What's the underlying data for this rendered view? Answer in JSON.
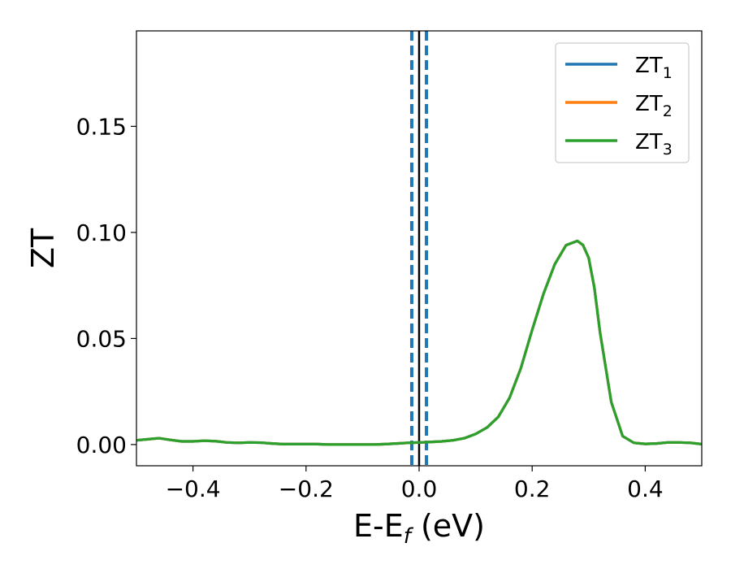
{
  "chart_data": {
    "type": "line",
    "xlabel": "E-E",
    "xlabel_sub": "f",
    "xlabel_unit": " (eV)",
    "ylabel": "ZT",
    "xlim": [
      -0.5,
      0.5
    ],
    "ylim": [
      -0.01,
      0.195
    ],
    "xticks": [
      -0.4,
      -0.2,
      0.0,
      0.2,
      0.4
    ],
    "xtick_labels": [
      "−0.4",
      "−0.2",
      "0.0",
      "0.2",
      "0.4"
    ],
    "yticks": [
      0.0,
      0.05,
      0.1,
      0.15
    ],
    "ytick_labels": [
      "0.00",
      "0.05",
      "0.10",
      "0.15"
    ],
    "grid": false,
    "legend_placement": "top-right",
    "vertical_lines": [
      {
        "x": 0.0,
        "color": "#000000",
        "style": "solid"
      },
      {
        "x": -0.013,
        "color": "#1f77b4",
        "style": "dashed"
      },
      {
        "x": 0.013,
        "color": "#1f77b4",
        "style": "dashed"
      }
    ],
    "x": [
      -0.5,
      -0.48,
      -0.46,
      -0.44,
      -0.42,
      -0.4,
      -0.38,
      -0.36,
      -0.34,
      -0.32,
      -0.3,
      -0.28,
      -0.26,
      -0.24,
      -0.22,
      -0.2,
      -0.18,
      -0.16,
      -0.14,
      -0.12,
      -0.1,
      -0.08,
      -0.06,
      -0.04,
      -0.02,
      0.0,
      0.02,
      0.04,
      0.06,
      0.08,
      0.1,
      0.12,
      0.14,
      0.16,
      0.18,
      0.2,
      0.22,
      0.24,
      0.26,
      0.28,
      0.29,
      0.3,
      0.31,
      0.32,
      0.34,
      0.36,
      0.38,
      0.4,
      0.42,
      0.44,
      0.46,
      0.48,
      0.5
    ],
    "series": [
      {
        "name": "ZT",
        "sub": "1",
        "color": "#1f77b4",
        "values": [
          0.002,
          0.0025,
          0.003,
          0.0022,
          0.0015,
          0.0015,
          0.0018,
          0.0016,
          0.001,
          0.0008,
          0.001,
          0.0009,
          0.0005,
          0.0002,
          0.0002,
          0.0002,
          0.0002,
          0.0,
          0.0,
          0.0,
          0.0,
          0.0,
          0.0002,
          0.0005,
          0.0008,
          0.001,
          0.0012,
          0.0015,
          0.002,
          0.003,
          0.005,
          0.008,
          0.013,
          0.022,
          0.036,
          0.054,
          0.071,
          0.085,
          0.094,
          0.096,
          0.094,
          0.088,
          0.074,
          0.053,
          0.02,
          0.004,
          0.0008,
          0.0003,
          0.0005,
          0.001,
          0.001,
          0.0008,
          0.0002
        ]
      },
      {
        "name": "ZT",
        "sub": "2",
        "color": "#ff7f0e",
        "values": [
          0.002,
          0.0025,
          0.003,
          0.0022,
          0.0015,
          0.0015,
          0.0018,
          0.0016,
          0.001,
          0.0008,
          0.001,
          0.0009,
          0.0005,
          0.0002,
          0.0002,
          0.0002,
          0.0002,
          0.0,
          0.0,
          0.0,
          0.0,
          0.0,
          0.0002,
          0.0005,
          0.0008,
          0.001,
          0.0012,
          0.0015,
          0.002,
          0.003,
          0.005,
          0.008,
          0.013,
          0.022,
          0.036,
          0.054,
          0.071,
          0.085,
          0.094,
          0.096,
          0.094,
          0.088,
          0.074,
          0.053,
          0.02,
          0.004,
          0.0008,
          0.0003,
          0.0005,
          0.001,
          0.001,
          0.0008,
          0.0002
        ]
      },
      {
        "name": "ZT",
        "sub": "3",
        "color": "#2ca02c",
        "values": [
          0.002,
          0.0025,
          0.003,
          0.0022,
          0.0015,
          0.0015,
          0.0018,
          0.0016,
          0.001,
          0.0008,
          0.001,
          0.0009,
          0.0005,
          0.0002,
          0.0002,
          0.0002,
          0.0002,
          0.0,
          0.0,
          0.0,
          0.0,
          0.0,
          0.0002,
          0.0005,
          0.0008,
          0.001,
          0.0012,
          0.0015,
          0.002,
          0.003,
          0.005,
          0.008,
          0.013,
          0.022,
          0.036,
          0.054,
          0.071,
          0.085,
          0.094,
          0.096,
          0.094,
          0.088,
          0.074,
          0.053,
          0.02,
          0.004,
          0.0008,
          0.0003,
          0.0005,
          0.001,
          0.001,
          0.0008,
          0.0002
        ]
      }
    ]
  }
}
